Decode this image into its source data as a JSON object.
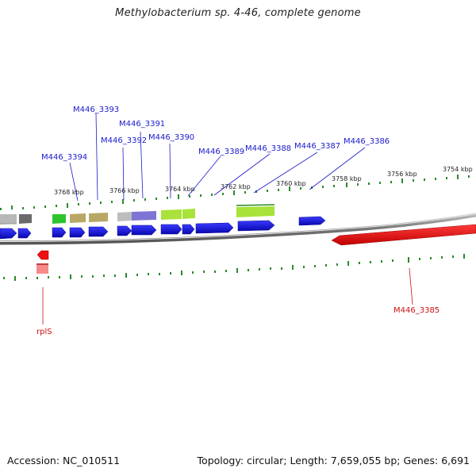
{
  "title": "Methylobacterium sp. 4-46, complete genome",
  "footer": {
    "accession_label": "Accession:",
    "accession": "NC_010511",
    "topology_label": "Topology:",
    "topology": "circular",
    "length_label": "Length:",
    "length": "7,659,055 bp",
    "genes_label": "Genes:",
    "genes": "6,691"
  },
  "colors": {
    "forward_gene": "#1a1aee",
    "reverse_gene": "#ee1111",
    "label_forward": "#1a1acc",
    "label_reverse": "#cc1111",
    "backbone": "#888888",
    "tick": "#2a8a2a"
  },
  "scale_labels": [
    "3768 kbp",
    "3766 kbp",
    "3764 kbp",
    "3762 kbp",
    "3760 kbp",
    "3758 kbp",
    "3756 kbp",
    "3754 kbp"
  ],
  "gene_labels": {
    "forward": [
      "M446_3394",
      "M446_3393",
      "M446_3392",
      "M446_3391",
      "M446_3390",
      "M446_3389",
      "M446_3388",
      "M446_3387",
      "M446_3386"
    ],
    "reverse": [
      "rplS",
      "M446_3385"
    ]
  }
}
